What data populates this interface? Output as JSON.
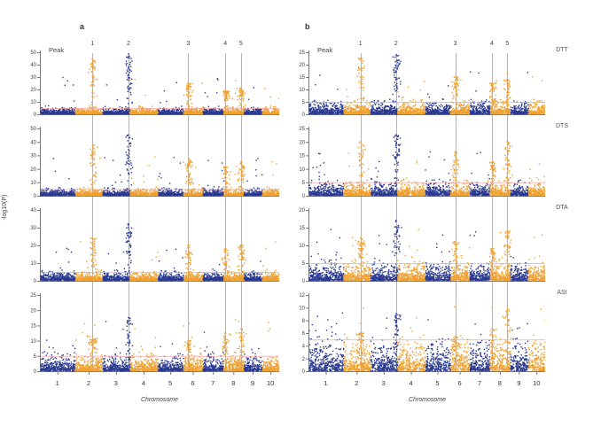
{
  "figure": {
    "panel_a_label": "a",
    "panel_b_label": "b",
    "peak_header_label": "Peak",
    "y_axis_label": "-log10(P)",
    "x_axis_label": "Chromosome"
  },
  "chart_data": {
    "type": "scatter",
    "subtype": "manhattan",
    "title": "",
    "xlabel": "Chromosome",
    "ylabel": "-log10(P)",
    "grid": false,
    "legend": "none",
    "columns": [
      {
        "id": "a",
        "label": "a"
      },
      {
        "id": "b",
        "label": "b"
      }
    ],
    "row_labels": [
      "DTT",
      "DTS",
      "DTA",
      "ASI"
    ],
    "chromosomes": [
      "1",
      "2",
      "3",
      "4",
      "5",
      "6",
      "7",
      "8",
      "9",
      "10"
    ],
    "chromosome_width_fractions": [
      0.146,
      0.115,
      0.113,
      0.118,
      0.106,
      0.082,
      0.086,
      0.085,
      0.076,
      0.073
    ],
    "peak_header": "Peak",
    "peaks": [
      {
        "label": "1",
        "chromosome": "2",
        "x_fraction": 0.22
      },
      {
        "label": "2",
        "chromosome": "3",
        "x_fraction": 0.37
      },
      {
        "label": "3",
        "chromosome": "6",
        "x_fraction": 0.62
      },
      {
        "label": "4",
        "chromosome": "8",
        "x_fraction": 0.775
      },
      {
        "label": "5",
        "chromosome": "8",
        "x_fraction": 0.84
      }
    ],
    "threshold_line_value": 5,
    "colors": {
      "odd_chromosome_points": "#2A3990",
      "even_chromosome_points": "#EFA02F",
      "threshold_line": "#F2A0A0",
      "peak_guide_line": "#9B9B9B",
      "axis": "#777777",
      "text": "#444444"
    },
    "panels": [
      {
        "id": "a-DTT",
        "col": "a",
        "row": 0,
        "trait": "DTT",
        "ymax": 50,
        "yticks": [
          0,
          10,
          20,
          30,
          40,
          50
        ],
        "threshold": 5,
        "peak_heights": [
          0.88,
          0.97,
          0.5,
          0.38,
          0.42
        ],
        "n_points": 2600,
        "seed": 11
      },
      {
        "id": "a-DTS",
        "col": "a",
        "row": 1,
        "trait": "DTS",
        "ymax": 50,
        "yticks": [
          0,
          10,
          20,
          30,
          40,
          50
        ],
        "threshold": 5,
        "peak_heights": [
          0.75,
          0.9,
          0.55,
          0.42,
          0.5
        ],
        "n_points": 2600,
        "seed": 22
      },
      {
        "id": "a-DTA",
        "col": "a",
        "row": 2,
        "trait": "DTA",
        "ymax": 40,
        "yticks": [
          0,
          10,
          20,
          30,
          40
        ],
        "threshold": 5,
        "peak_heights": [
          0.6,
          0.8,
          0.5,
          0.45,
          0.5
        ],
        "n_points": 2600,
        "seed": 33
      },
      {
        "id": "a-ASI",
        "col": "a",
        "row": 3,
        "trait": "ASI",
        "ymax": 25,
        "yticks": [
          0,
          5,
          10,
          15,
          20,
          25
        ],
        "threshold": 5,
        "peak_heights": [
          0.45,
          0.7,
          0.4,
          0.5,
          0.55
        ],
        "n_points": 2600,
        "seed": 44
      },
      {
        "id": "b-DTT",
        "col": "b",
        "row": 0,
        "trait": "DTT",
        "ymax": 25,
        "yticks": [
          0,
          5,
          10,
          15,
          20,
          25
        ],
        "threshold": 5,
        "peak_heights": [
          0.9,
          0.95,
          0.6,
          0.5,
          0.55
        ],
        "n_points": 2600,
        "seed": 55
      },
      {
        "id": "b-DTS",
        "col": "b",
        "row": 1,
        "trait": "DTS",
        "ymax": 25,
        "yticks": [
          0,
          5,
          10,
          15,
          20,
          25
        ],
        "threshold": 5,
        "peak_heights": [
          0.8,
          0.9,
          0.65,
          0.5,
          0.8
        ],
        "n_points": 2600,
        "seed": 66
      },
      {
        "id": "b-DTA",
        "col": "b",
        "row": 2,
        "trait": "DTA",
        "ymax": 20,
        "yticks": [
          0,
          5,
          10,
          15,
          20
        ],
        "threshold": 5,
        "peak_heights": [
          0.6,
          0.85,
          0.55,
          0.45,
          0.7
        ],
        "n_points": 2600,
        "seed": 77
      },
      {
        "id": "b-ASI",
        "col": "b",
        "row": 3,
        "trait": "ASI",
        "ymax": 12,
        "yticks": [
          0,
          2,
          4,
          6,
          8,
          10,
          12
        ],
        "threshold": 5,
        "peak_heights": [
          0.5,
          0.75,
          0.45,
          0.55,
          0.85
        ],
        "n_points": 2600,
        "seed": 88
      }
    ]
  }
}
